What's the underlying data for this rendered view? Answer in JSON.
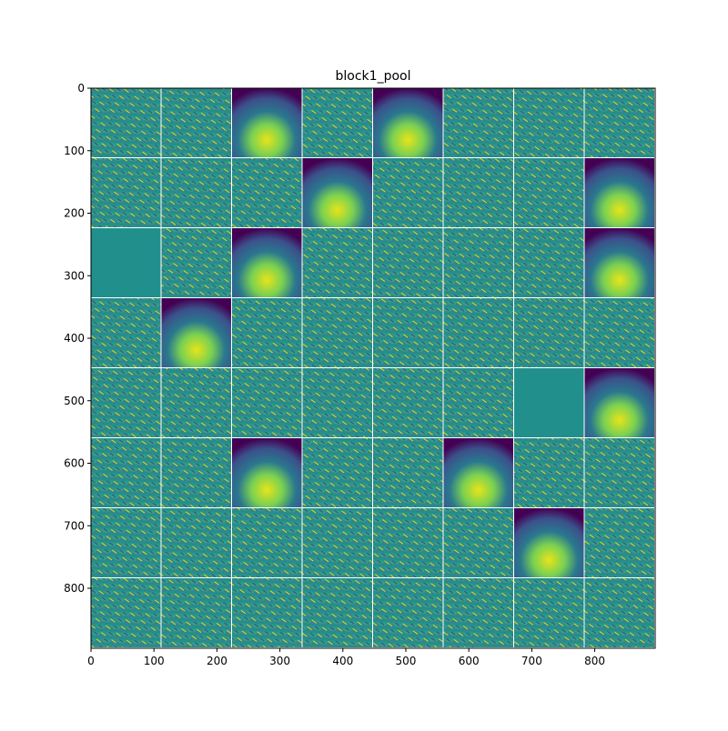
{
  "chart_data": {
    "type": "image",
    "title": "block1_pool",
    "xlim": [
      0,
      896
    ],
    "ylim": [
      896,
      0
    ],
    "xticks": [
      0,
      100,
      200,
      300,
      400,
      500,
      600,
      700,
      800
    ],
    "yticks": [
      0,
      100,
      200,
      300,
      400,
      500,
      600,
      700,
      800
    ]
  }
}
